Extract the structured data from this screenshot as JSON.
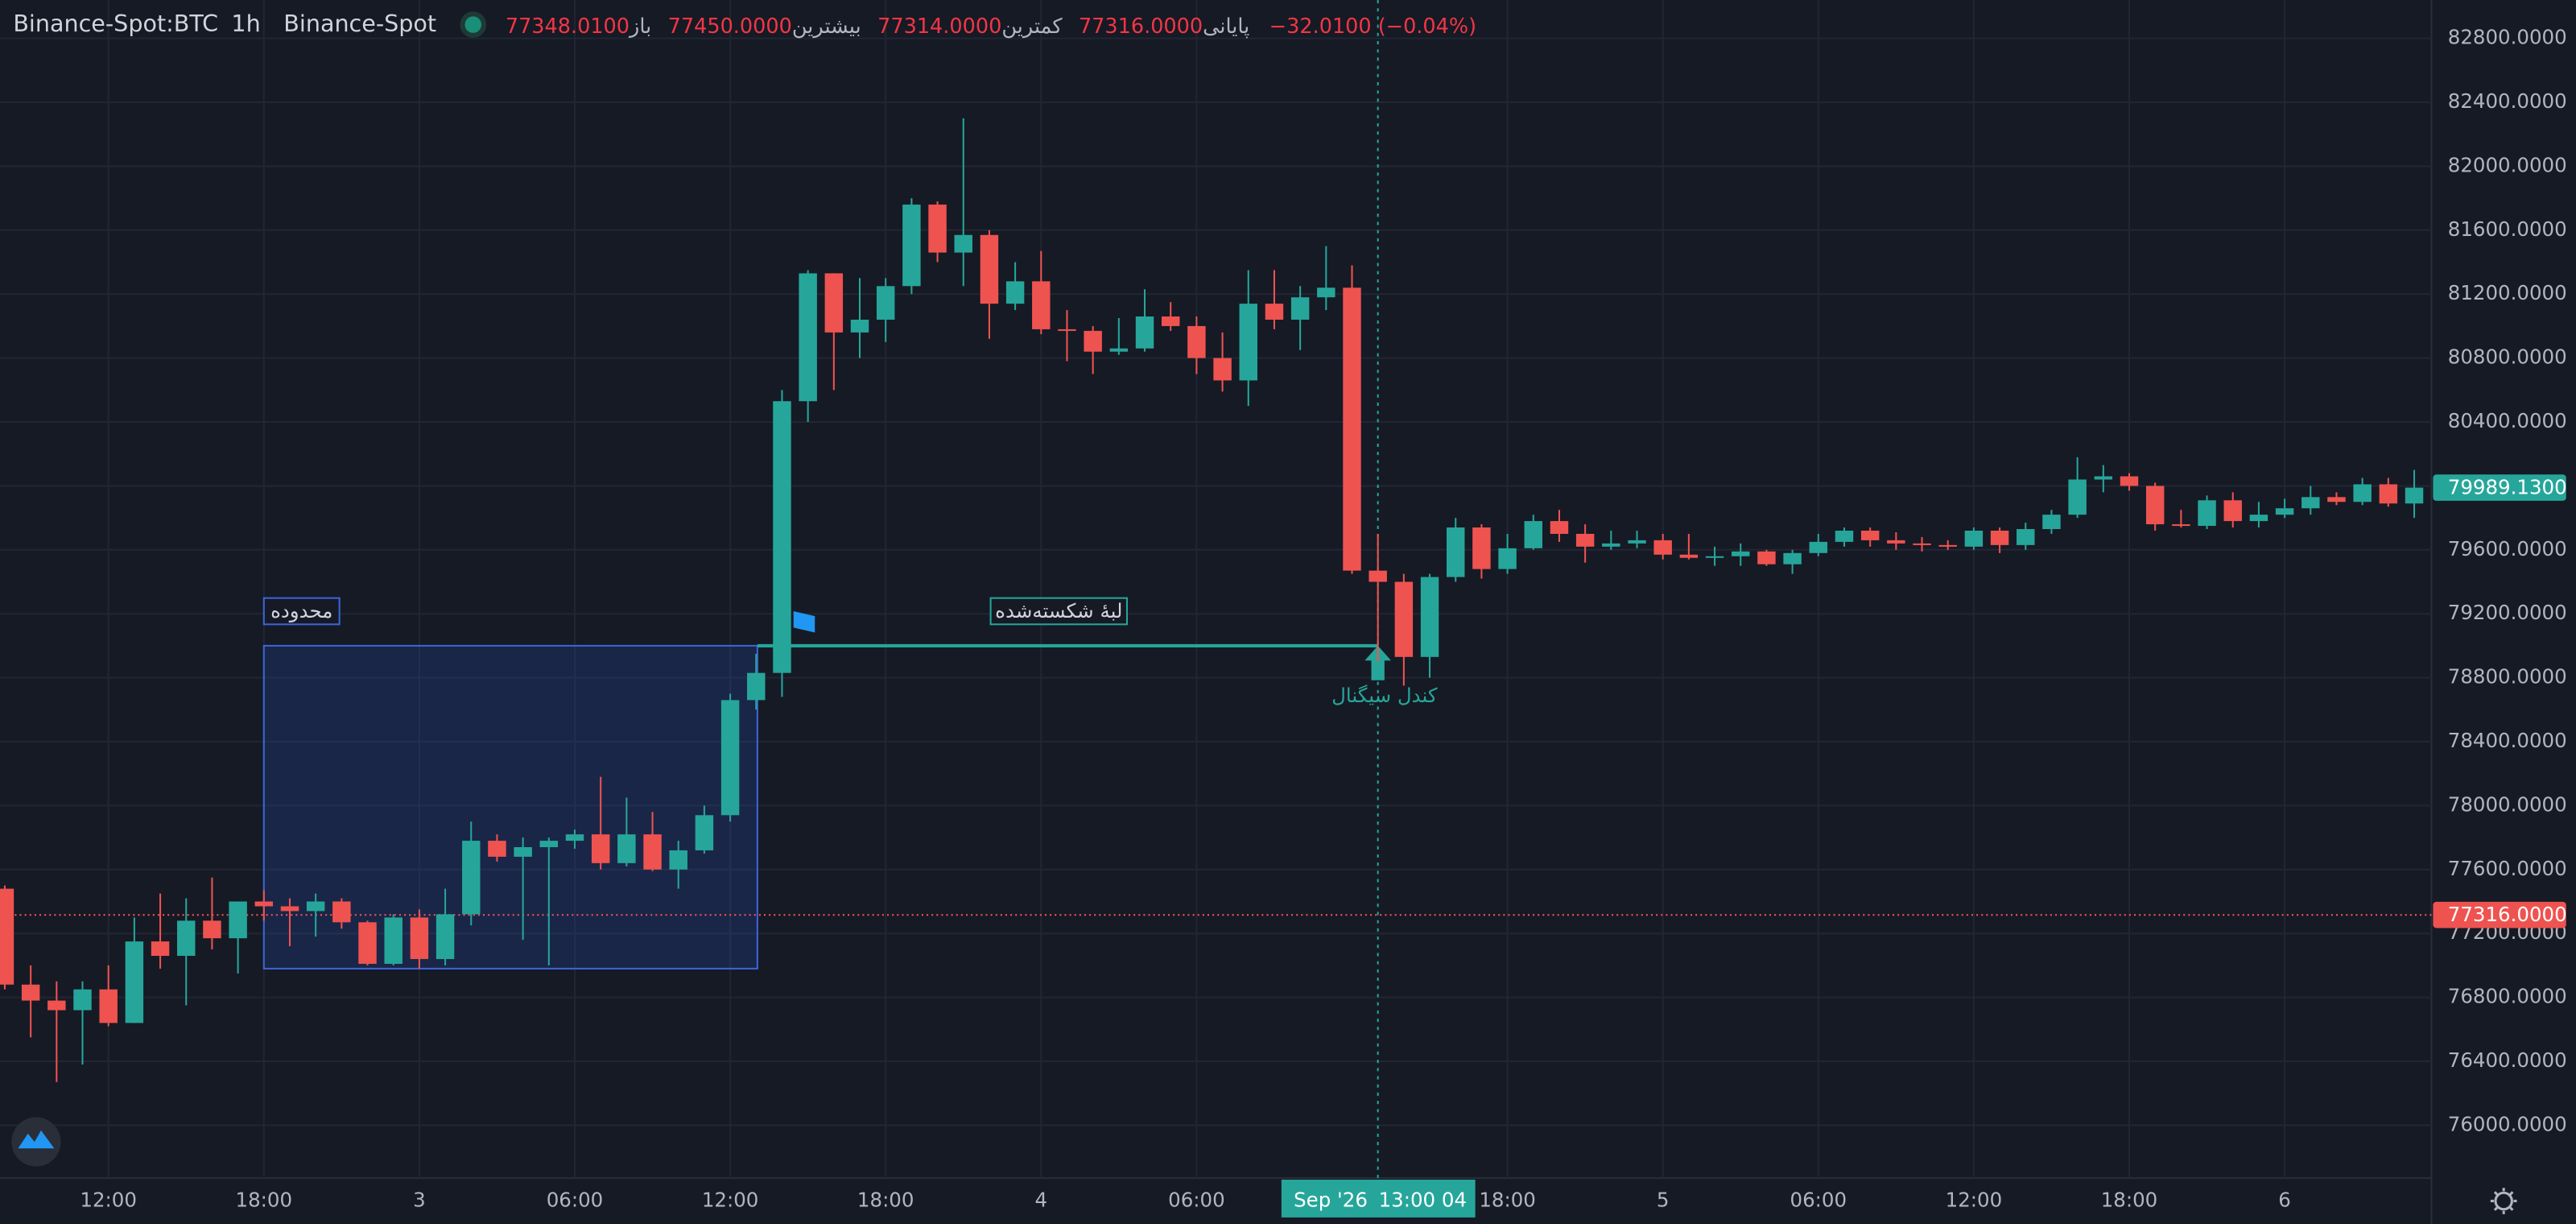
{
  "chart_data": {
    "type": "candlestick",
    "up_color": "#26a69a",
    "down_color": "#ef5350",
    "grid": true,
    "header": {
      "symbol": "Binance-Spot:BTC",
      "interval": "1h",
      "exchange": "Binance-Spot",
      "ohlc": [
        {
          "label": "باز",
          "value": "77348.0100"
        },
        {
          "label": "بیشترین",
          "value": "77450.0000"
        },
        {
          "label": "کمترین",
          "value": "77314.0000"
        },
        {
          "label": "پایانی",
          "value": "77316.0000"
        }
      ],
      "change": "−32.0100 (−0.04%)"
    },
    "categories": [
      null,
      null,
      null,
      null,
      "12:00",
      null,
      null,
      null,
      null,
      null,
      "18:00",
      null,
      null,
      null,
      null,
      null,
      "3",
      null,
      null,
      null,
      null,
      null,
      "06:00",
      null,
      null,
      null,
      null,
      null,
      "12:00",
      null,
      null,
      null,
      null,
      null,
      "18:00",
      null,
      null,
      null,
      null,
      null,
      "4",
      null,
      null,
      null,
      null,
      null,
      "06:00",
      null,
      null,
      null,
      null,
      null,
      null,
      null,
      null,
      null,
      null,
      null,
      "18:00",
      null,
      null,
      null,
      null,
      null,
      "5",
      null,
      null,
      null,
      null,
      null,
      "06:00",
      null,
      null,
      null,
      null,
      null,
      "12:00",
      null,
      null,
      null,
      null,
      null,
      "18:00",
      null,
      null,
      null,
      null,
      null,
      "6",
      null,
      null,
      null,
      null,
      null
    ],
    "candles": {
      "open": [
        77480,
        76880,
        76780,
        76720,
        76850,
        76640,
        77150,
        77060,
        77280,
        77170,
        77400,
        77370,
        77340,
        77400,
        77270,
        77010,
        77300,
        77040,
        77320,
        77780,
        77680,
        77740,
        77780,
        77820,
        77640,
        77820,
        77600,
        77720,
        77940,
        78660,
        78830,
        80530,
        81330,
        80960,
        81040,
        81250,
        81760,
        81460,
        81570,
        81140,
        81280,
        80980,
        80970,
        80840,
        80860,
        81060,
        81000,
        80800,
        80660,
        81140,
        81040,
        81180,
        81240,
        79470,
        79400,
        78930,
        79430,
        79740,
        79480,
        79610,
        79780,
        79700,
        79620,
        79640,
        79660,
        79570,
        79550,
        79560,
        79590,
        79510,
        79580,
        79650,
        79720,
        79660,
        79640,
        79630,
        79620,
        79720,
        79630,
        79730,
        79820,
        80040,
        80060,
        80000,
        79760,
        79750,
        79910,
        79780,
        79820,
        79860,
        79930,
        79900,
        80010,
        79890
      ],
      "high": [
        77500,
        77000,
        76900,
        76900,
        77000,
        77300,
        77450,
        77420,
        77550,
        77400,
        77470,
        77420,
        77450,
        77420,
        77280,
        77320,
        77350,
        77480,
        77900,
        77820,
        77800,
        77800,
        77850,
        78180,
        78050,
        77960,
        77780,
        78000,
        78700,
        78950,
        80600,
        81350,
        81330,
        81300,
        81300,
        81800,
        81780,
        82300,
        81600,
        81400,
        81470,
        81100,
        81000,
        81050,
        81230,
        81150,
        81060,
        80960,
        81350,
        81350,
        81250,
        81500,
        81380,
        79700,
        79450,
        79450,
        79800,
        79760,
        79700,
        79820,
        79850,
        79760,
        79720,
        79720,
        79700,
        79700,
        79620,
        79640,
        79600,
        79600,
        79700,
        79740,
        79740,
        79710,
        79680,
        79660,
        79740,
        79740,
        79770,
        79850,
        80180,
        80130,
        80080,
        80020,
        79850,
        79940,
        79960,
        79900,
        79920,
        80000,
        79960,
        80050,
        80050,
        80100
      ],
      "low": [
        76850,
        76550,
        76270,
        76380,
        76620,
        76640,
        76980,
        76750,
        77100,
        76950,
        77280,
        77120,
        77180,
        77230,
        77000,
        77000,
        76980,
        77000,
        77250,
        77650,
        77160,
        77000,
        77730,
        77600,
        77620,
        77590,
        77480,
        77700,
        77900,
        78600,
        78680,
        80400,
        80600,
        80800,
        80900,
        81200,
        81400,
        81250,
        80920,
        81100,
        80950,
        80780,
        80700,
        80820,
        80840,
        80970,
        80700,
        80590,
        80500,
        80980,
        80850,
        81100,
        79450,
        78900,
        78750,
        78800,
        79400,
        79420,
        79450,
        79600,
        79650,
        79520,
        79600,
        79610,
        79540,
        79540,
        79500,
        79500,
        79500,
        79450,
        79560,
        79620,
        79620,
        79600,
        79590,
        79600,
        79600,
        79580,
        79600,
        79700,
        79800,
        79960,
        79970,
        79720,
        79740,
        79730,
        79740,
        79740,
        79800,
        79820,
        79880,
        79880,
        79870,
        79800
      ],
      "close": [
        76880,
        76780,
        76720,
        76850,
        76640,
        77150,
        77060,
        77280,
        77170,
        77400,
        77370,
        77340,
        77400,
        77270,
        77010,
        77300,
        77040,
        77320,
        77780,
        77680,
        77740,
        77780,
        77820,
        77640,
        77820,
        77600,
        77720,
        77940,
        78660,
        78830,
        80530,
        81330,
        80960,
        81040,
        81250,
        81760,
        81460,
        81570,
        81140,
        81280,
        80980,
        80970,
        80840,
        80860,
        81060,
        81000,
        80800,
        80660,
        81140,
        81040,
        81180,
        81240,
        79470,
        79400,
        78930,
        79430,
        79740,
        79480,
        79610,
        79780,
        79700,
        79620,
        79640,
        79660,
        79570,
        79550,
        79560,
        79590,
        79510,
        79580,
        79650,
        79720,
        79660,
        79640,
        79630,
        79620,
        79720,
        79630,
        79730,
        79820,
        80040,
        80060,
        80000,
        79760,
        79750,
        79910,
        79780,
        79820,
        79860,
        79930,
        79900,
        80010,
        79890,
        79989.13
      ]
    },
    "last_price_label": "79989.1300",
    "price_line": {
      "value": 77316,
      "label": "77316.0000",
      "color": "#ef5350"
    },
    "ylim": [
      75670,
      83040
    ],
    "yticks": [
      {
        "value": 76000,
        "label": "76000.0000"
      },
      {
        "value": 76400,
        "label": "76400.0000"
      },
      {
        "value": 76800,
        "label": "76800.0000"
      },
      {
        "value": 77200,
        "label": "77200.0000"
      },
      {
        "value": 77600,
        "label": "77600.0000"
      },
      {
        "value": 78000,
        "label": "78000.0000"
      },
      {
        "value": 78400,
        "label": "78400.0000"
      },
      {
        "value": 78800,
        "label": "78800.0000"
      },
      {
        "value": 79200,
        "label": "79200.0000"
      },
      {
        "value": 79600,
        "label": "79600.0000"
      },
      {
        "value": 80000,
        "label": "80000.0000"
      },
      {
        "value": 80400,
        "label": "80400.0000"
      },
      {
        "value": 80800,
        "label": "80800.0000"
      },
      {
        "value": 81200,
        "label": "81200.0000"
      },
      {
        "value": 81600,
        "label": "81600.0000"
      },
      {
        "value": 82000,
        "label": "82000.0000"
      },
      {
        "value": 82400,
        "label": "82400.0000"
      },
      {
        "value": 82800,
        "label": "82800.0000"
      }
    ],
    "range_box": {
      "label": "محدوده",
      "top": 79000,
      "bottom": 76980
    },
    "broken_level": {
      "label": "لبهٔ شکسته‌شده",
      "value": 79000
    },
    "signal": {
      "label": "کندل سیگنال"
    },
    "crosshair": {
      "date_label": "Sep '26",
      "time_label": "13:00 04"
    }
  }
}
